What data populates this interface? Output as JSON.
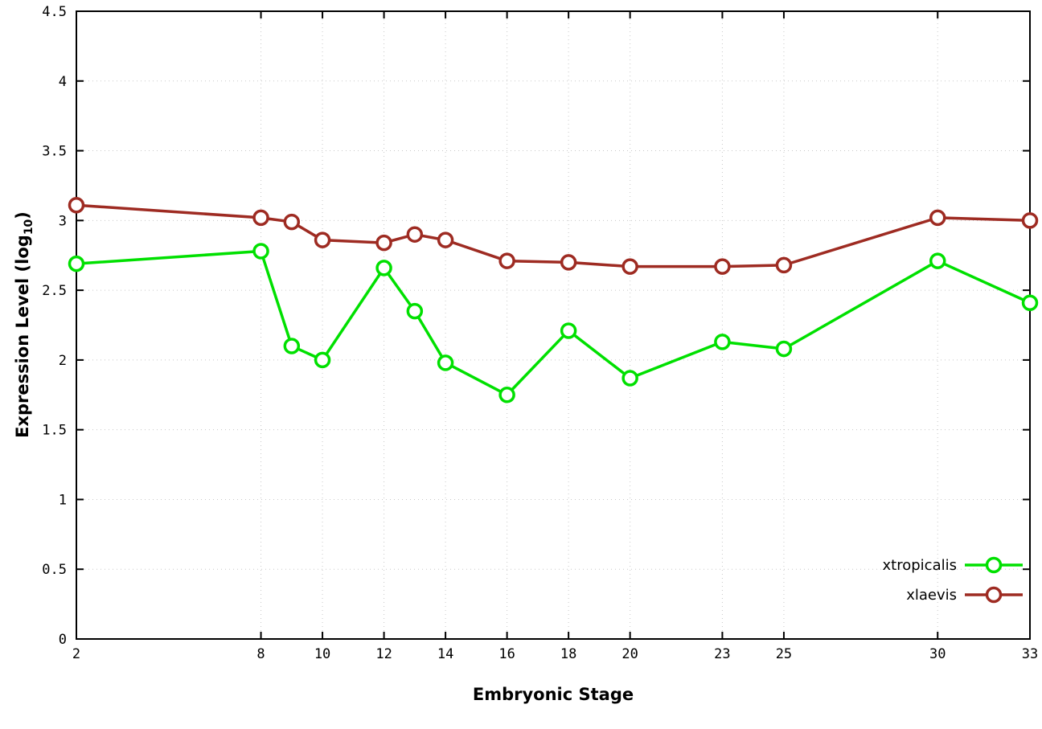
{
  "chart_data": {
    "type": "line",
    "x": [
      2,
      8,
      9,
      10,
      12,
      13,
      14,
      16,
      18,
      20,
      23,
      25,
      30,
      33
    ],
    "series": [
      {
        "name": "xtropicalis",
        "color": "#00e000",
        "values": [
          2.69,
          2.78,
          2.1,
          2.0,
          2.66,
          2.35,
          1.98,
          1.75,
          2.21,
          1.87,
          2.13,
          2.08,
          2.71,
          2.41
        ]
      },
      {
        "name": "xlaevis",
        "color": "#9e2b22",
        "values": [
          3.11,
          3.02,
          2.99,
          2.86,
          2.84,
          2.9,
          2.86,
          2.71,
          2.7,
          2.67,
          2.67,
          2.68,
          3.02,
          3.0
        ]
      }
    ],
    "xlabel": "Embryonic Stage",
    "ylabel": {
      "prefix": "Expression Level (log",
      "sub": "10",
      "suffix": ")"
    },
    "xlim": [
      2,
      33
    ],
    "ylim": [
      0,
      4.5
    ],
    "xticks": [
      2,
      8,
      10,
      12,
      14,
      16,
      18,
      20,
      23,
      25,
      30,
      33
    ],
    "yticks": [
      0,
      0.5,
      1,
      1.5,
      2,
      2.5,
      3,
      3.5,
      4,
      4.5
    ],
    "ytick_labels": [
      "0",
      "0.5",
      "1",
      "1.5",
      "2",
      "2.5",
      "3",
      "3.5",
      "4",
      "4.5"
    ],
    "grid": true,
    "legend_position": "bottom-right"
  },
  "colors": {
    "background": "#ffffff",
    "axis": "#000000",
    "grid": "#c8c8c8",
    "tick_text": "#000000",
    "marker_fill": "#ffffff"
  }
}
